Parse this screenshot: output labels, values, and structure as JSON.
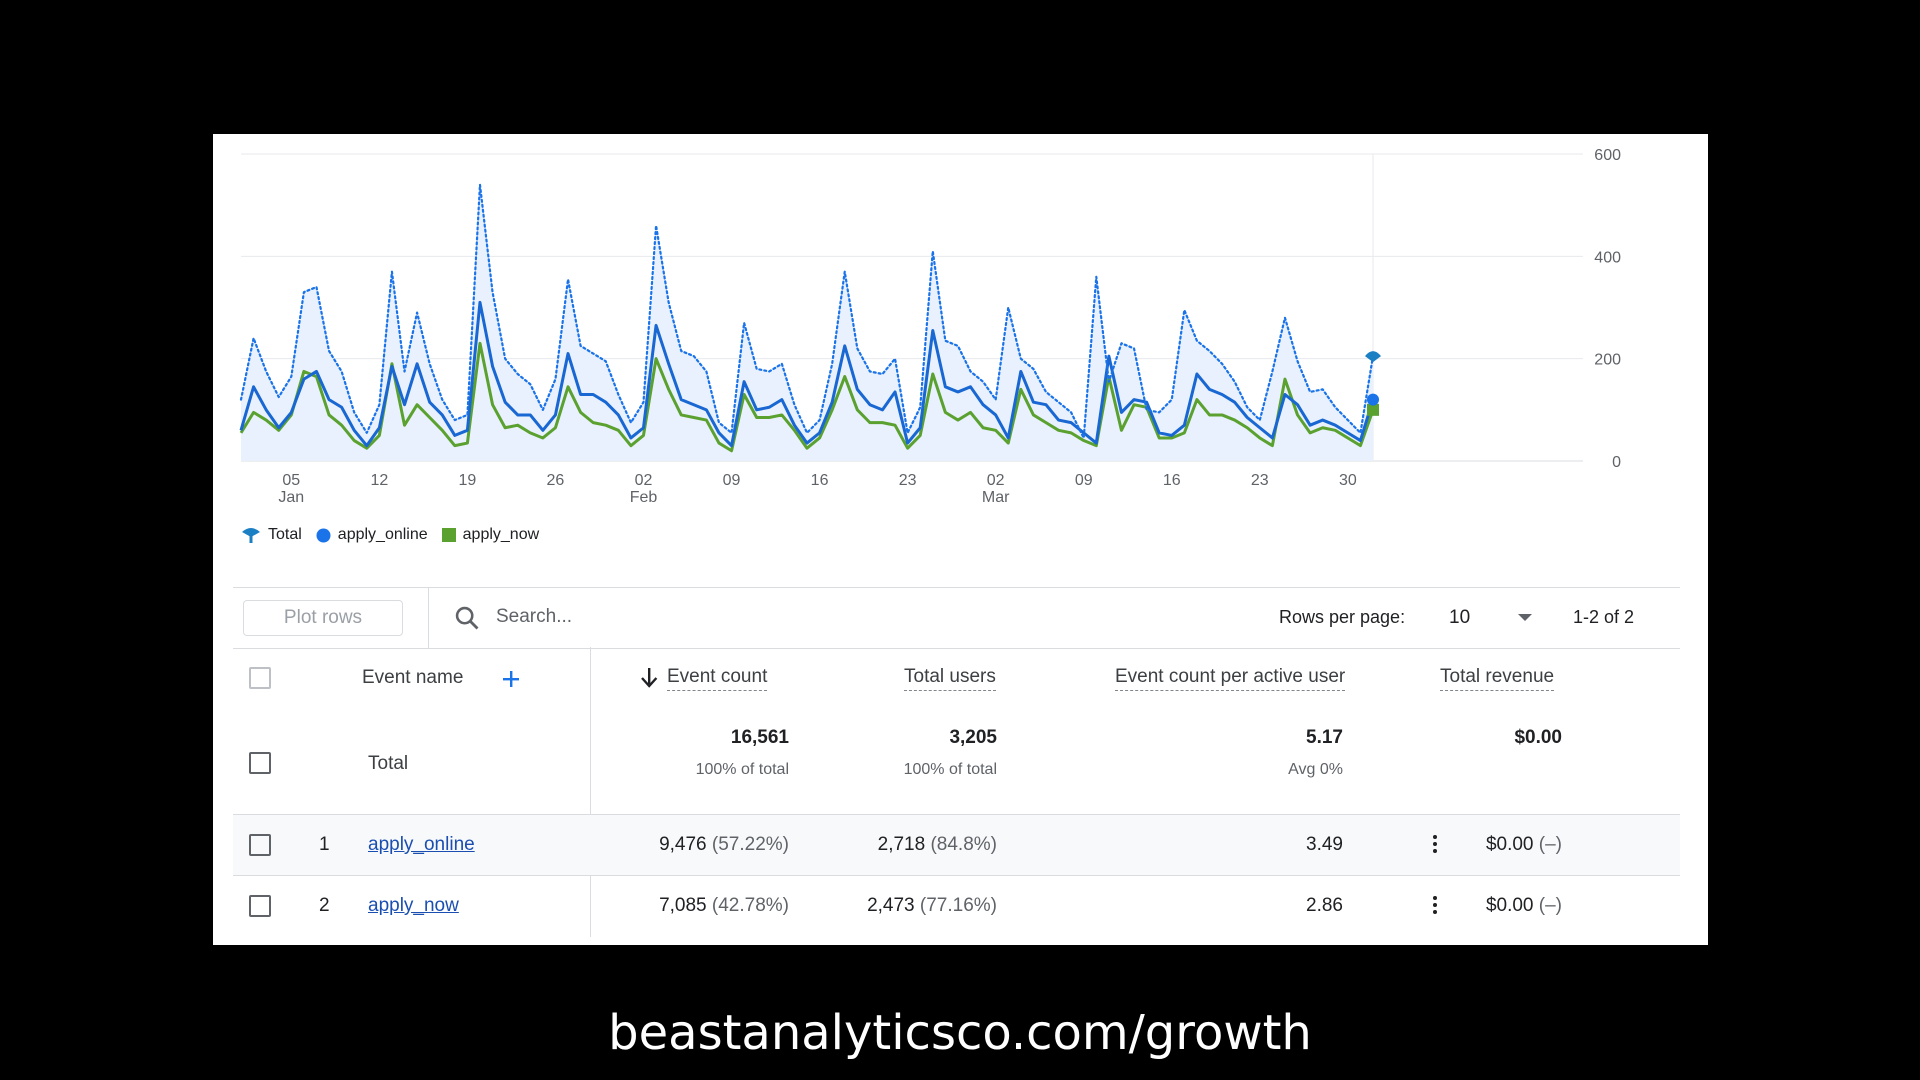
{
  "chart_data": {
    "type": "line",
    "y_ticks": [
      "600",
      "400",
      "200",
      "0"
    ],
    "ylim": [
      0,
      600
    ],
    "x_ticks": [
      {
        "day": "05",
        "month": "Jan",
        "i": 4
      },
      {
        "day": "12",
        "month": "",
        "i": 11
      },
      {
        "day": "19",
        "month": "",
        "i": 18
      },
      {
        "day": "26",
        "month": "",
        "i": 25
      },
      {
        "day": "02",
        "month": "Feb",
        "i": 32
      },
      {
        "day": "09",
        "month": "",
        "i": 39
      },
      {
        "day": "16",
        "month": "",
        "i": 46
      },
      {
        "day": "23",
        "month": "",
        "i": 53
      },
      {
        "day": "02",
        "month": "Mar",
        "i": 60
      },
      {
        "day": "09",
        "month": "",
        "i": 67
      },
      {
        "day": "16",
        "month": "",
        "i": 74
      },
      {
        "day": "23",
        "month": "",
        "i": 81
      },
      {
        "day": "30",
        "month": "",
        "i": 88
      }
    ],
    "series": [
      {
        "name": "Total",
        "color": "#1a73e8",
        "style": "dotted",
        "values": [
          120,
          240,
          175,
          125,
          165,
          330,
          340,
          215,
          175,
          95,
          55,
          110,
          370,
          175,
          290,
          190,
          120,
          80,
          90,
          540,
          330,
          200,
          170,
          150,
          100,
          160,
          355,
          225,
          210,
          195,
          130,
          75,
          115,
          460,
          310,
          215,
          205,
          175,
          75,
          55,
          270,
          180,
          175,
          190,
          110,
          55,
          80,
          190,
          370,
          220,
          175,
          170,
          200,
          55,
          105,
          410,
          235,
          225,
          175,
          155,
          120,
          300,
          200,
          180,
          135,
          115,
          95,
          45,
          360,
          155,
          230,
          220,
          100,
          95,
          120,
          295,
          235,
          215,
          190,
          155,
          105,
          80,
          175,
          280,
          195,
          135,
          140,
          105,
          80,
          55,
          205
        ]
      },
      {
        "name": "apply_online",
        "color": "#1967d2",
        "style": "solid",
        "values": [
          60,
          145,
          100,
          65,
          95,
          160,
          175,
          120,
          105,
          60,
          30,
          65,
          185,
          110,
          190,
          115,
          90,
          50,
          60,
          310,
          185,
          115,
          90,
          90,
          60,
          90,
          210,
          130,
          130,
          115,
          90,
          45,
          65,
          265,
          190,
          120,
          110,
          100,
          55,
          30,
          155,
          100,
          105,
          120,
          70,
          35,
          55,
          115,
          225,
          140,
          110,
          100,
          135,
          35,
          65,
          255,
          145,
          135,
          145,
          110,
          90,
          45,
          175,
          115,
          110,
          80,
          75,
          55,
          35,
          205,
          95,
          120,
          115,
          55,
          50,
          70,
          170,
          140,
          130,
          115,
          85,
          65,
          45,
          130,
          110,
          70,
          80,
          70,
          55,
          40,
          120
        ]
      },
      {
        "name": "apply_now",
        "color": "#5ba130",
        "style": "solid",
        "values": [
          55,
          95,
          80,
          60,
          90,
          175,
          165,
          90,
          70,
          40,
          25,
          50,
          190,
          70,
          110,
          85,
          60,
          30,
          35,
          230,
          110,
          65,
          70,
          55,
          45,
          65,
          145,
          95,
          75,
          70,
          60,
          30,
          50,
          200,
          140,
          90,
          85,
          80,
          35,
          20,
          130,
          85,
          85,
          90,
          60,
          25,
          45,
          100,
          165,
          100,
          75,
          75,
          70,
          25,
          50,
          170,
          95,
          80,
          95,
          65,
          60,
          35,
          140,
          90,
          75,
          60,
          55,
          40,
          30,
          165,
          60,
          110,
          105,
          45,
          45,
          55,
          120,
          90,
          90,
          80,
          65,
          45,
          30,
          160,
          90,
          55,
          65,
          60,
          45,
          30,
          100
        ]
      }
    ]
  },
  "legend": {
    "total": "Total",
    "online": "apply_online",
    "now": "apply_now"
  },
  "toolbar": {
    "plot_rows": "Plot rows",
    "search_placeholder": "Search...",
    "rows_per_page_label": "Rows per page:",
    "rows_per_page_value": "10",
    "pagination": "1-2 of 2"
  },
  "table": {
    "headers": {
      "event_name": "Event name",
      "event_count": "Event count",
      "total_users": "Total users",
      "per_user": "Event count per active user",
      "revenue": "Total revenue"
    },
    "total": {
      "label": "Total",
      "event_count": "16,561",
      "event_count_sub": "100% of total",
      "total_users": "3,205",
      "total_users_sub": "100% of total",
      "per_user": "5.17",
      "per_user_sub": "Avg 0%",
      "revenue": "$0.00"
    },
    "rows": [
      {
        "index": "1",
        "name": "apply_online",
        "event_count": "9,476",
        "event_count_pct": "(57.22%)",
        "total_users": "2,718",
        "total_users_pct": "(84.8%)",
        "per_user": "3.49",
        "revenue": "$0.00",
        "revenue_delta": "(–)"
      },
      {
        "index": "2",
        "name": "apply_now",
        "event_count": "7,085",
        "event_count_pct": "(42.78%)",
        "total_users": "2,473",
        "total_users_pct": "(77.16%)",
        "per_user": "2.86",
        "revenue": "$0.00",
        "revenue_delta": "(–)"
      }
    ]
  },
  "footer": {
    "text": "beastanalyticsco.com/growth"
  }
}
